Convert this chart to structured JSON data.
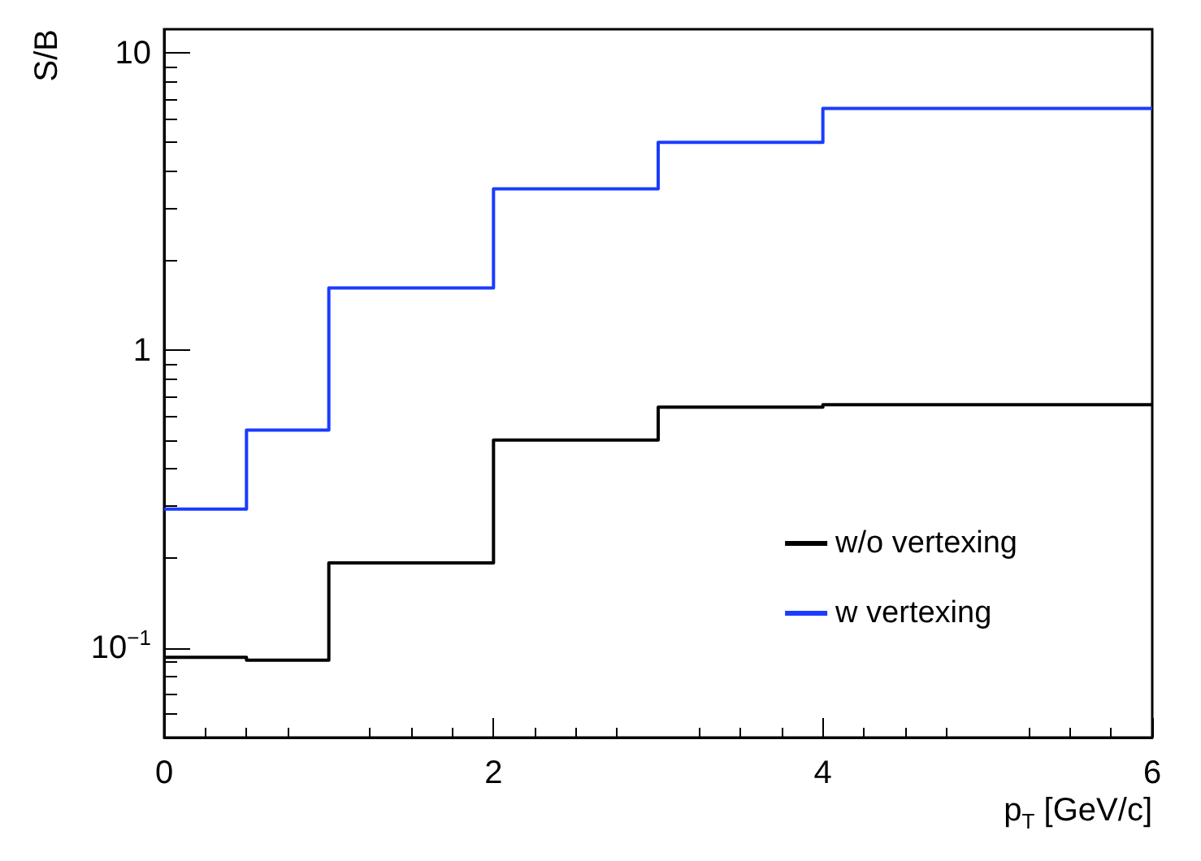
{
  "chart_data": {
    "type": "histogram",
    "xlabel": "p$_{T}$ [GeV/c]",
    "ylabel": "S/B",
    "bins": [
      0,
      0.5,
      1,
      2,
      3,
      4,
      6
    ],
    "series": [
      {
        "name": "w/o vertexing",
        "color": "#000000",
        "values": [
          0.093,
          0.091,
          0.193,
          0.5,
          0.645,
          0.657
        ]
      },
      {
        "name": "w vertexing",
        "color": "#1a3cff",
        "values": [
          0.293,
          0.54,
          1.62,
          3.49,
          5.0,
          6.5
        ]
      }
    ],
    "xlim": [
      0,
      6
    ],
    "xticks": [
      0,
      2,
      4,
      6
    ],
    "ylim": [
      0.05,
      12
    ],
    "yticks": [
      {
        "value": 0.1,
        "label": "10$^{−1}$"
      },
      1,
      10
    ],
    "log": "y",
    "grid": false,
    "legend": "bottom right"
  }
}
